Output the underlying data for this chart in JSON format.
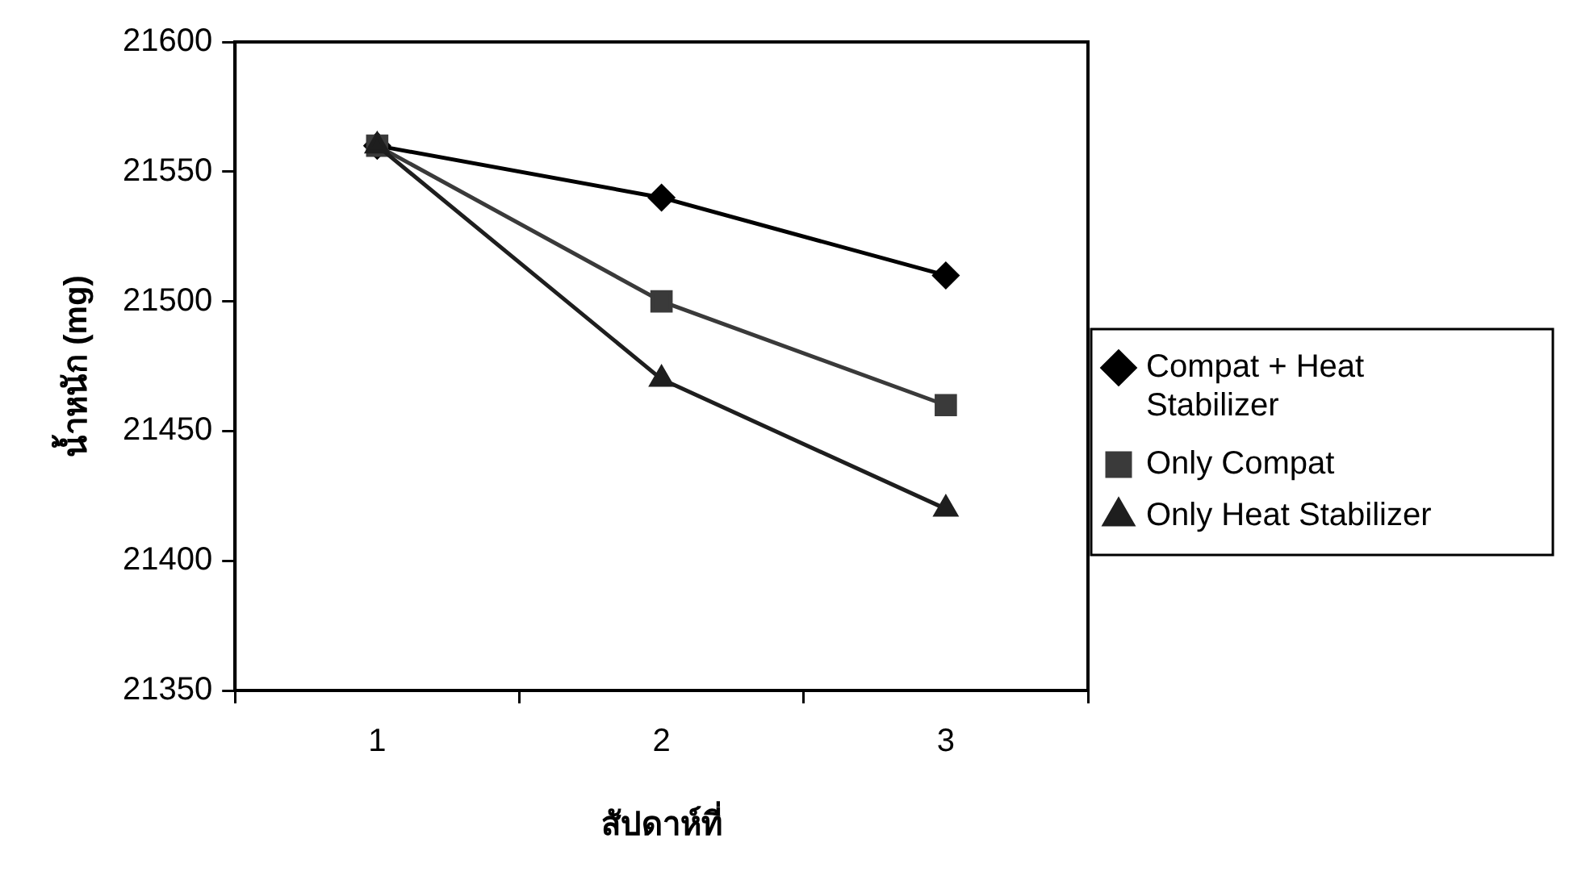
{
  "chart_data": {
    "type": "line",
    "xlabel": "สัปดาห์ที่",
    "ylabel": "น้ำหนัก (mg)",
    "categories": [
      "1",
      "2",
      "3"
    ],
    "series": [
      {
        "name": "Compat + Heat Stabilizer",
        "color": "#000000",
        "marker": "diamond",
        "values": [
          21560,
          21540,
          21510
        ]
      },
      {
        "name": "Only Compat",
        "color": "#3a3a3a",
        "marker": "square",
        "values": [
          21560,
          21500,
          21460
        ]
      },
      {
        "name": "Only Heat Stabilizer",
        "color": "#1e1e1e",
        "marker": "triangle",
        "values": [
          21560,
          21470,
          21420
        ]
      }
    ],
    "ylim": [
      21350,
      21600
    ],
    "yticks": [
      21350,
      21400,
      21450,
      21500,
      21550,
      21600
    ],
    "grid": false,
    "legend": "right",
    "line_style": "solid"
  }
}
